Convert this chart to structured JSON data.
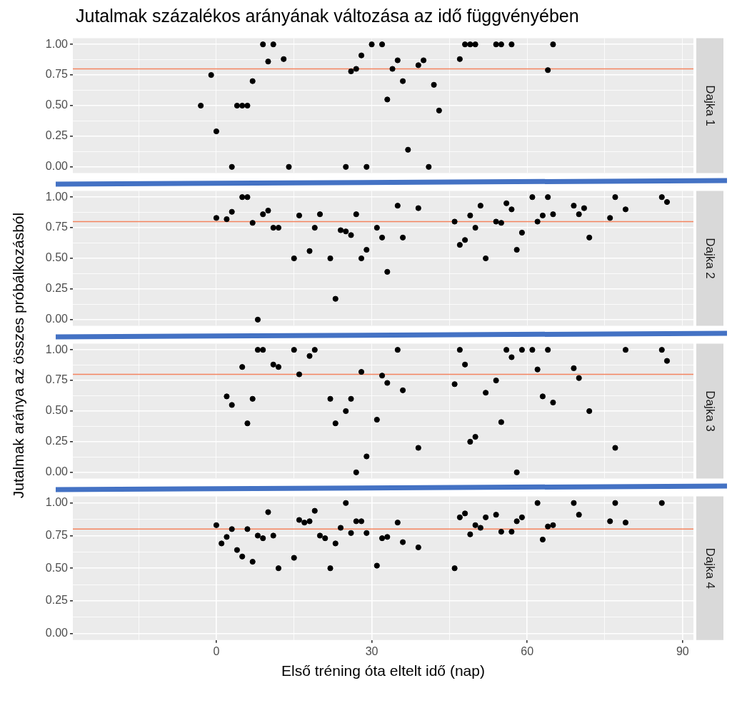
{
  "chart_data": [
    {
      "type": "scatter",
      "title": "Jutalmak százalékos arányának változása az idő függvényében",
      "annotations": [
        "Dajka 1"
      ],
      "ylabel": "Jutalmak aránya az összes próbálkozásból",
      "tick_labels": "y",
      "grid": true,
      "marker": "circle",
      "xlim": [
        -27.7,
        92.1
      ],
      "ylim": [
        -0.05,
        1.05
      ],
      "xticks": [
        {
          "value": -15,
          "label": null
        },
        {
          "value": 0,
          "label": null
        },
        {
          "value": 15,
          "label": null
        },
        {
          "value": 30,
          "label": null
        },
        {
          "value": 45,
          "label": null
        },
        {
          "value": 60,
          "label": null
        },
        {
          "value": 75,
          "label": null
        },
        {
          "value": 90,
          "label": null
        }
      ],
      "yticks": [
        {
          "value": 0,
          "label": "0.00"
        },
        {
          "value": 0.125,
          "label": null
        },
        {
          "value": 0.25,
          "label": "0.25"
        },
        {
          "value": 0.375,
          "label": null
        },
        {
          "value": 0.5,
          "label": "0.50"
        },
        {
          "value": 0.625,
          "label": null
        },
        {
          "value": 0.75,
          "label": "0.75"
        },
        {
          "value": 0.875,
          "label": null
        },
        {
          "value": 1,
          "label": "1.00"
        }
      ],
      "ref_lines": [
        {
          "axis": "y",
          "value": 0.8,
          "color": "#f4845f"
        }
      ],
      "series": [
        {
          "color": "#000000",
          "x": [
            -3,
            -1,
            0,
            3,
            4,
            5,
            6,
            7,
            9,
            10,
            11,
            13,
            14,
            25,
            26,
            27,
            28,
            29,
            30,
            32,
            33,
            34,
            35,
            36,
            37,
            39,
            40,
            41,
            42,
            43,
            47,
            48,
            49,
            50,
            54,
            55,
            57,
            64,
            65
          ],
          "values": [
            0.5,
            0.75,
            0.29,
            0,
            0.5,
            0.5,
            0.5,
            0.7,
            1,
            0.86,
            1,
            0.88,
            0,
            0,
            0.78,
            0.8,
            0.91,
            0,
            1,
            1,
            0.55,
            0.8,
            0.87,
            0.7,
            0.14,
            0.83,
            0.87,
            0,
            0.67,
            0.46,
            0.88,
            1,
            1,
            1,
            1,
            1,
            1,
            0.79,
            1
          ]
        }
      ]
    },
    {
      "type": "scatter",
      "annotations": [
        "Dajka 2"
      ],
      "tick_labels": "y",
      "grid": true,
      "marker": "circle",
      "xlim": [
        -27.7,
        92.1
      ],
      "ylim": [
        -0.05,
        1.05
      ],
      "xticks": [
        {
          "value": -15,
          "label": null
        },
        {
          "value": 0,
          "label": null
        },
        {
          "value": 15,
          "label": null
        },
        {
          "value": 30,
          "label": null
        },
        {
          "value": 45,
          "label": null
        },
        {
          "value": 60,
          "label": null
        },
        {
          "value": 75,
          "label": null
        },
        {
          "value": 90,
          "label": null
        }
      ],
      "yticks": [
        {
          "value": 0,
          "label": "0.00"
        },
        {
          "value": 0.125,
          "label": null
        },
        {
          "value": 0.25,
          "label": "0.25"
        },
        {
          "value": 0.375,
          "label": null
        },
        {
          "value": 0.5,
          "label": "0.50"
        },
        {
          "value": 0.625,
          "label": null
        },
        {
          "value": 0.75,
          "label": "0.75"
        },
        {
          "value": 0.875,
          "label": null
        },
        {
          "value": 1,
          "label": "1.00"
        }
      ],
      "ref_lines": [
        {
          "axis": "y",
          "value": 0.8,
          "color": "#f4845f"
        }
      ],
      "series": [
        {
          "color": "#000000",
          "x": [
            0,
            2,
            3,
            5,
            6,
            7,
            8,
            9,
            10,
            11,
            12,
            15,
            16,
            18,
            19,
            20,
            22,
            23,
            24,
            25,
            26,
            27,
            28,
            29,
            31,
            32,
            33,
            35,
            36,
            39,
            46,
            47,
            48,
            49,
            50,
            51,
            52,
            54,
            55,
            56,
            57,
            58,
            59,
            61,
            62,
            63,
            64,
            65,
            69,
            70,
            71,
            72,
            76,
            77,
            79,
            86,
            87
          ],
          "values": [
            0.83,
            0.82,
            0.88,
            1,
            1,
            0.79,
            0,
            0.86,
            0.89,
            0.75,
            0.75,
            0.5,
            0.85,
            0.56,
            0.75,
            0.86,
            0.5,
            0.17,
            0.73,
            0.72,
            0.69,
            0.86,
            0.5,
            0.57,
            0.75,
            0.67,
            0.39,
            0.93,
            0.67,
            0.91,
            0.8,
            0.61,
            0.65,
            0.85,
            0.75,
            0.93,
            0.5,
            0.8,
            0.79,
            0.95,
            0.9,
            0.57,
            0.71,
            1,
            0.8,
            0.85,
            1,
            0.86,
            0.93,
            0.86,
            0.91,
            0.67,
            0.83,
            1,
            0.9,
            1,
            0.96
          ]
        }
      ]
    },
    {
      "type": "scatter",
      "annotations": [
        "Dajka 3"
      ],
      "tick_labels": "y",
      "grid": true,
      "marker": "circle",
      "xlim": [
        -27.7,
        92.1
      ],
      "ylim": [
        -0.05,
        1.05
      ],
      "xticks": [
        {
          "value": -15,
          "label": null
        },
        {
          "value": 0,
          "label": null
        },
        {
          "value": 15,
          "label": null
        },
        {
          "value": 30,
          "label": null
        },
        {
          "value": 45,
          "label": null
        },
        {
          "value": 60,
          "label": null
        },
        {
          "value": 75,
          "label": null
        },
        {
          "value": 90,
          "label": null
        }
      ],
      "yticks": [
        {
          "value": 0,
          "label": "0.00"
        },
        {
          "value": 0.125,
          "label": null
        },
        {
          "value": 0.25,
          "label": "0.25"
        },
        {
          "value": 0.375,
          "label": null
        },
        {
          "value": 0.5,
          "label": "0.50"
        },
        {
          "value": 0.625,
          "label": null
        },
        {
          "value": 0.75,
          "label": "0.75"
        },
        {
          "value": 0.875,
          "label": null
        },
        {
          "value": 1,
          "label": "1.00"
        }
      ],
      "ref_lines": [
        {
          "axis": "y",
          "value": 0.8,
          "color": "#f4845f"
        }
      ],
      "series": [
        {
          "color": "#000000",
          "x": [
            2,
            3,
            5,
            6,
            7,
            8,
            9,
            11,
            12,
            15,
            16,
            18,
            19,
            22,
            23,
            25,
            26,
            27,
            28,
            29,
            31,
            32,
            33,
            35,
            36,
            39,
            46,
            47,
            48,
            49,
            50,
            52,
            54,
            55,
            56,
            57,
            58,
            59,
            61,
            62,
            63,
            64,
            65,
            69,
            70,
            72,
            77,
            79,
            86,
            87
          ],
          "values": [
            0.62,
            0.55,
            0.86,
            0.4,
            0.6,
            1,
            1,
            0.88,
            0.86,
            1,
            0.8,
            0.95,
            1,
            0.6,
            0.4,
            0.5,
            0.6,
            0,
            0.82,
            0.13,
            0.43,
            0.79,
            0.73,
            1,
            0.67,
            0.2,
            0.72,
            1,
            0.88,
            0.25,
            0.29,
            0.65,
            0.75,
            0.41,
            1,
            0.94,
            0,
            1,
            1,
            0.84,
            0.62,
            1,
            0.57,
            0.85,
            0.77,
            0.5,
            0.2,
            1,
            1,
            0.91
          ]
        }
      ]
    },
    {
      "type": "scatter",
      "annotations": [
        "Dajka 4"
      ],
      "xlabel": "Első tréning óta eltelt idő (nap)",
      "grid": true,
      "marker": "circle",
      "xlim": [
        -27.7,
        92.1
      ],
      "ylim": [
        -0.05,
        1.05
      ],
      "xticks": [
        {
          "value": -15,
          "label": null
        },
        {
          "value": 0,
          "label": "0"
        },
        {
          "value": 15,
          "label": null
        },
        {
          "value": 30,
          "label": "30"
        },
        {
          "value": 45,
          "label": null
        },
        {
          "value": 60,
          "label": "60"
        },
        {
          "value": 75,
          "label": null
        },
        {
          "value": 90,
          "label": "90"
        }
      ],
      "yticks": [
        {
          "value": 0,
          "label": "0.00"
        },
        {
          "value": 0.125,
          "label": null
        },
        {
          "value": 0.25,
          "label": "0.25"
        },
        {
          "value": 0.375,
          "label": null
        },
        {
          "value": 0.5,
          "label": "0.50"
        },
        {
          "value": 0.625,
          "label": null
        },
        {
          "value": 0.75,
          "label": "0.75"
        },
        {
          "value": 0.875,
          "label": null
        },
        {
          "value": 1,
          "label": "1.00"
        }
      ],
      "ref_lines": [
        {
          "axis": "y",
          "value": 0.8,
          "color": "#f4845f"
        }
      ],
      "series": [
        {
          "color": "#000000",
          "x": [
            0,
            1,
            2,
            3,
            4,
            5,
            6,
            7,
            8,
            9,
            10,
            11,
            12,
            15,
            16,
            17,
            18,
            19,
            20,
            21,
            22,
            23,
            24,
            25,
            26,
            27,
            28,
            29,
            31,
            32,
            33,
            35,
            36,
            39,
            46,
            47,
            48,
            49,
            50,
            51,
            52,
            54,
            55,
            57,
            58,
            59,
            62,
            63,
            64,
            65,
            69,
            70,
            76,
            77,
            79,
            86
          ],
          "values": [
            0.83,
            0.69,
            0.74,
            0.8,
            0.64,
            0.59,
            0.8,
            0.55,
            0.75,
            0.73,
            0.93,
            0.75,
            0.5,
            0.58,
            0.87,
            0.85,
            0.86,
            0.94,
            0.75,
            0.73,
            0.5,
            0.69,
            0.81,
            1,
            0.77,
            0.86,
            0.86,
            0.77,
            0.52,
            0.73,
            0.74,
            0.85,
            0.7,
            0.66,
            0.5,
            0.89,
            0.92,
            0.76,
            0.83,
            0.81,
            0.89,
            0.91,
            0.78,
            0.78,
            0.86,
            0.89,
            1,
            0.72,
            0.82,
            0.83,
            1,
            0.91,
            0.86,
            1,
            0.85,
            1
          ]
        }
      ]
    }
  ]
}
